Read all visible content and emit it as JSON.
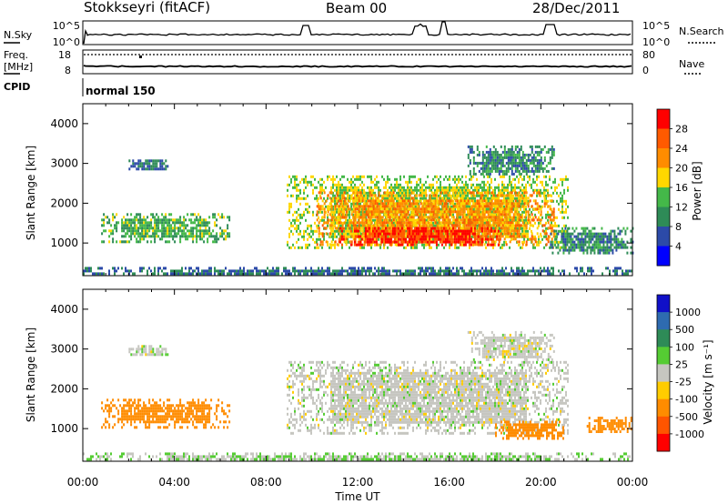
{
  "header": {
    "station": "Stokkseyri (fitACF)",
    "beam": "Beam 00",
    "date": "28/Dec/2011"
  },
  "top_panel": {
    "left_label": "N.Sky",
    "right_label": "N.Search",
    "left_ticks": [
      "10^5",
      "10^0"
    ],
    "right_ticks": [
      "10^5",
      "10^0"
    ]
  },
  "freq_panel": {
    "left_label_1": "Freq.",
    "left_label_2": "[MHz]",
    "right_label": "Nave",
    "left_ticks": [
      "18",
      "8"
    ],
    "right_ticks": [
      "80",
      "0"
    ]
  },
  "cpid": {
    "label": "CPID",
    "mode": "normal 150"
  },
  "colors": {
    "power": [
      "#0000ff",
      "#2c4aa8",
      "#2e8b57",
      "#44b849",
      "#ffd700",
      "#ff8c00",
      "#ff5a00",
      "#ff0000"
    ],
    "velocity": [
      "#1010c8",
      "#2e6bb0",
      "#2e8b57",
      "#55cc33",
      "#c6c6c0",
      "#ffcc00",
      "#ff8c00",
      "#ff5500",
      "#ff0000"
    ]
  },
  "chart_data": [
    {
      "type": "heatmap",
      "name": "Power",
      "ylabel": "Slant Range [km]",
      "xlim": [
        0,
        24
      ],
      "ylim": [
        180,
        4500
      ],
      "y_ticks": [
        "1000",
        "2000",
        "3000",
        "4000"
      ],
      "colorbar": {
        "label": "Power [dB]",
        "tick_labels": [
          "4",
          "8",
          "12",
          "16",
          "20",
          "24",
          "28"
        ],
        "range": [
          0,
          32
        ]
      },
      "regions": [
        {
          "t0": 0.8,
          "t1": 6.4,
          "r0": 1050,
          "r1": 1750,
          "v": 13
        },
        {
          "t0": 2.0,
          "t1": 3.7,
          "r0": 2850,
          "r1": 3100,
          "v": 8
        },
        {
          "t0": 8.9,
          "t1": 21.2,
          "r0": 900,
          "r1": 2700,
          "v": 16
        },
        {
          "t0": 10.2,
          "t1": 20.6,
          "r0": 950,
          "r1": 2300,
          "v": 22
        },
        {
          "t0": 11.2,
          "t1": 18.2,
          "r0": 950,
          "r1": 1400,
          "v": 29
        },
        {
          "t0": 16.8,
          "t1": 20.6,
          "r0": 2700,
          "r1": 3450,
          "v": 10
        },
        {
          "t0": 20.4,
          "t1": 24.0,
          "r0": 750,
          "r1": 1400,
          "v": 10
        },
        {
          "t0": 0.0,
          "t1": 24.0,
          "r0": 200,
          "r1": 400,
          "v": 8
        }
      ]
    },
    {
      "type": "heatmap",
      "name": "Velocity",
      "ylabel": "Slant Range [km]",
      "xlabel": "Time UT",
      "xlim": [
        0,
        24
      ],
      "ylim": [
        180,
        4500
      ],
      "x_ticks": [
        "00:00",
        "04:00",
        "08:00",
        "12:00",
        "16:00",
        "20:00",
        "00:00"
      ],
      "y_ticks": [
        "1000",
        "2000",
        "3000",
        "4000"
      ],
      "colorbar": {
        "label": "Velocity [m s⁻¹]",
        "tick_labels": [
          "1000",
          "500",
          "100",
          "25",
          "-25",
          "-100",
          "-500",
          "-1000"
        ],
        "range": [
          1000,
          -1000
        ]
      },
      "regions": [
        {
          "t0": 0.8,
          "t1": 6.4,
          "r0": 1050,
          "r1": 1750,
          "v": -200
        },
        {
          "t0": 2.0,
          "t1": 3.7,
          "r0": 2850,
          "r1": 3100,
          "v": 0
        },
        {
          "t0": 8.9,
          "t1": 21.2,
          "r0": 900,
          "r1": 2700,
          "v": 0
        },
        {
          "t0": 16.8,
          "t1": 20.6,
          "r0": 2700,
          "r1": 3450,
          "v": 0
        },
        {
          "t0": 18.0,
          "t1": 21.0,
          "r0": 750,
          "r1": 1200,
          "v": -300
        },
        {
          "t0": 22.0,
          "t1": 24.0,
          "r0": 900,
          "r1": 1300,
          "v": -300
        },
        {
          "t0": 0.0,
          "t1": 24.0,
          "r0": 200,
          "r1": 400,
          "v": 20
        }
      ]
    }
  ]
}
